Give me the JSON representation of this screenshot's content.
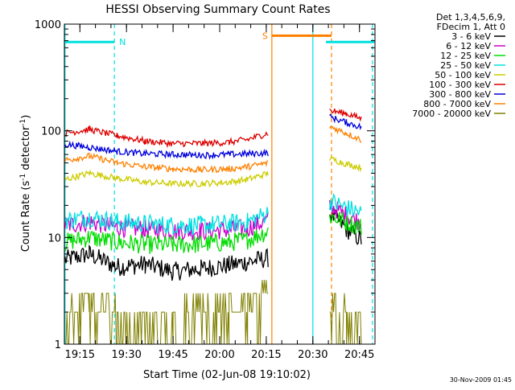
{
  "chart_data": {
    "type": "line",
    "title": "HESSI Observing Summary Count Rates",
    "xlabel": "Start Time (02-Jun-08 19:10:02)",
    "ylabel_main": "Count Rate (s",
    "ylabel_sup1": "-1",
    "ylabel_mid": " detector",
    "ylabel_sup2": "-1",
    "ylabel_end": ")",
    "yscale": "log",
    "ylim": [
      1,
      1000
    ],
    "y_ticks": [
      {
        "v": 1,
        "label": "1"
      },
      {
        "v": 10,
        "label": "10"
      },
      {
        "v": 100,
        "label": "100"
      },
      {
        "v": 1000,
        "label": "1000"
      }
    ],
    "xlim_minutes": [
      19.1667,
      20.8333
    ],
    "x_ticks": [
      {
        "t": 19.25,
        "label": "19:15"
      },
      {
        "t": 19.5,
        "label": "19:30"
      },
      {
        "t": 19.75,
        "label": "19:45"
      },
      {
        "t": 20.0,
        "label": "20:00"
      },
      {
        "t": 20.25,
        "label": "20:15"
      },
      {
        "t": 20.5,
        "label": "20:30"
      },
      {
        "t": 20.75,
        "label": "20:45"
      }
    ],
    "legend_header": [
      "Det 1,3,4,5,6,9,",
      "FDecim 1, Att 0"
    ],
    "series": [
      {
        "name": "3 - 6 keV",
        "color": "#000000",
        "points": [
          [
            19.17,
            6.2
          ],
          [
            19.3,
            7.0
          ],
          [
            19.45,
            5.3
          ],
          [
            19.6,
            5.6
          ],
          [
            19.75,
            4.8
          ],
          [
            19.9,
            5.1
          ],
          [
            20.05,
            5.5
          ],
          [
            20.15,
            5.9
          ],
          [
            20.26,
            6.4
          ],
          [
            20.26,
            null
          ],
          [
            20.59,
            17
          ],
          [
            20.68,
            12
          ],
          [
            20.76,
            9.5
          ]
        ]
      },
      {
        "name": "6 - 12 keV",
        "color": "#cc00cc",
        "points": [
          [
            19.17,
            13
          ],
          [
            19.3,
            14
          ],
          [
            19.45,
            12.5
          ],
          [
            19.6,
            12
          ],
          [
            19.75,
            11.5
          ],
          [
            19.9,
            11.5
          ],
          [
            20.05,
            11.8
          ],
          [
            20.15,
            12.3
          ],
          [
            20.26,
            14.5
          ],
          [
            20.26,
            null
          ],
          [
            20.59,
            20
          ],
          [
            20.68,
            16
          ],
          [
            20.76,
            14
          ]
        ]
      },
      {
        "name": "12 - 25 keV",
        "color": "#00dd00",
        "points": [
          [
            19.17,
            9.0
          ],
          [
            19.3,
            10.0
          ],
          [
            19.45,
            9.0
          ],
          [
            19.6,
            8.6
          ],
          [
            19.75,
            8.5
          ],
          [
            19.9,
            8.7
          ],
          [
            20.05,
            9.0
          ],
          [
            20.15,
            9.5
          ],
          [
            20.26,
            11.5
          ],
          [
            20.26,
            null
          ],
          [
            20.59,
            16
          ],
          [
            20.68,
            14
          ],
          [
            20.76,
            12.5
          ]
        ]
      },
      {
        "name": "25 - 50 keV",
        "color": "#00e0e0",
        "points": [
          [
            19.17,
            14.5
          ],
          [
            19.3,
            15.5
          ],
          [
            19.45,
            14
          ],
          [
            19.6,
            13.5
          ],
          [
            19.75,
            13
          ],
          [
            19.9,
            13
          ],
          [
            20.05,
            13.5
          ],
          [
            20.15,
            14
          ],
          [
            20.26,
            17
          ],
          [
            20.26,
            null
          ],
          [
            20.59,
            22
          ],
          [
            20.68,
            19
          ],
          [
            20.76,
            17
          ]
        ]
      },
      {
        "name": "50 - 100 keV",
        "color": "#cccc00",
        "points": [
          [
            19.17,
            35
          ],
          [
            19.3,
            40
          ],
          [
            19.45,
            36
          ],
          [
            19.6,
            33
          ],
          [
            19.75,
            32
          ],
          [
            19.9,
            32
          ],
          [
            20.05,
            33
          ],
          [
            20.15,
            35
          ],
          [
            20.26,
            40
          ],
          [
            20.26,
            null
          ],
          [
            20.59,
            55
          ],
          [
            20.68,
            49
          ],
          [
            20.76,
            45
          ]
        ]
      },
      {
        "name": "100 - 300 keV",
        "color": "#dd0000",
        "points": [
          [
            19.17,
            95
          ],
          [
            19.3,
            103
          ],
          [
            19.45,
            90
          ],
          [
            19.6,
            80
          ],
          [
            19.75,
            76
          ],
          [
            19.9,
            76
          ],
          [
            20.05,
            78
          ],
          [
            20.15,
            83
          ],
          [
            20.26,
            95
          ],
          [
            20.26,
            null
          ],
          [
            20.59,
            155
          ],
          [
            20.68,
            145
          ],
          [
            20.76,
            130
          ]
        ]
      },
      {
        "name": "300 - 800 keV",
        "color": "#0000dd",
        "points": [
          [
            19.17,
            75
          ],
          [
            19.3,
            70
          ],
          [
            19.45,
            64
          ],
          [
            19.6,
            61
          ],
          [
            19.75,
            60
          ],
          [
            19.9,
            59
          ],
          [
            20.05,
            60
          ],
          [
            20.15,
            61
          ],
          [
            20.26,
            62
          ],
          [
            20.26,
            null
          ],
          [
            20.59,
            135
          ],
          [
            20.68,
            120
          ],
          [
            20.76,
            108
          ]
        ]
      },
      {
        "name": "800 - 7000 keV",
        "color": "#ff8000",
        "points": [
          [
            19.17,
            53
          ],
          [
            19.3,
            58
          ],
          [
            19.45,
            50
          ],
          [
            19.6,
            46
          ],
          [
            19.75,
            44
          ],
          [
            19.9,
            43
          ],
          [
            20.05,
            44
          ],
          [
            20.15,
            46
          ],
          [
            20.26,
            50
          ],
          [
            20.26,
            null
          ],
          [
            20.59,
            110
          ],
          [
            20.68,
            95
          ],
          [
            20.76,
            82
          ]
        ]
      },
      {
        "name": "7000 - 20000 keV",
        "color": "#808000",
        "points": [
          [
            19.17,
            1.6
          ],
          [
            19.3,
            2.8
          ],
          [
            19.45,
            1.6
          ],
          [
            19.6,
            1.4
          ],
          [
            19.75,
            1.3
          ],
          [
            19.9,
            1.9
          ],
          [
            20.05,
            2.0
          ],
          [
            20.15,
            2.2
          ],
          [
            20.26,
            2.6
          ],
          [
            20.26,
            null
          ],
          [
            20.59,
            1.6
          ],
          [
            20.68,
            1.6
          ],
          [
            20.76,
            1.6
          ]
        ]
      }
    ],
    "markers": [
      {
        "label": "N",
        "color": "#00e0e0",
        "t_start": 19.17,
        "t_end": 19.435,
        "y": 680
      },
      {
        "label": "S",
        "color": "#ff8000",
        "t_start": 20.28,
        "t_end": 20.6,
        "y": 780
      }
    ],
    "bar_markers": [
      {
        "color": "#00e0e0",
        "t_start": 20.57,
        "t_end": 20.83,
        "y": 680
      }
    ],
    "vlines": [
      {
        "t": 19.17,
        "color": "#00e0e0",
        "style": "solid"
      },
      {
        "t": 19.435,
        "color": "#00e0e0",
        "style": "dashed"
      },
      {
        "t": 20.28,
        "color": "#ff8000",
        "style": "solid"
      },
      {
        "t": 20.5,
        "color": "#00e0e0",
        "style": "solid"
      },
      {
        "t": 20.6,
        "color": "#ff8000",
        "style": "dashed"
      },
      {
        "t": 20.82,
        "color": "#00e0e0",
        "style": "dashed"
      }
    ],
    "grid": false,
    "legend_position": "top-right"
  },
  "timestamp": "30-Nov-2009 01:45"
}
